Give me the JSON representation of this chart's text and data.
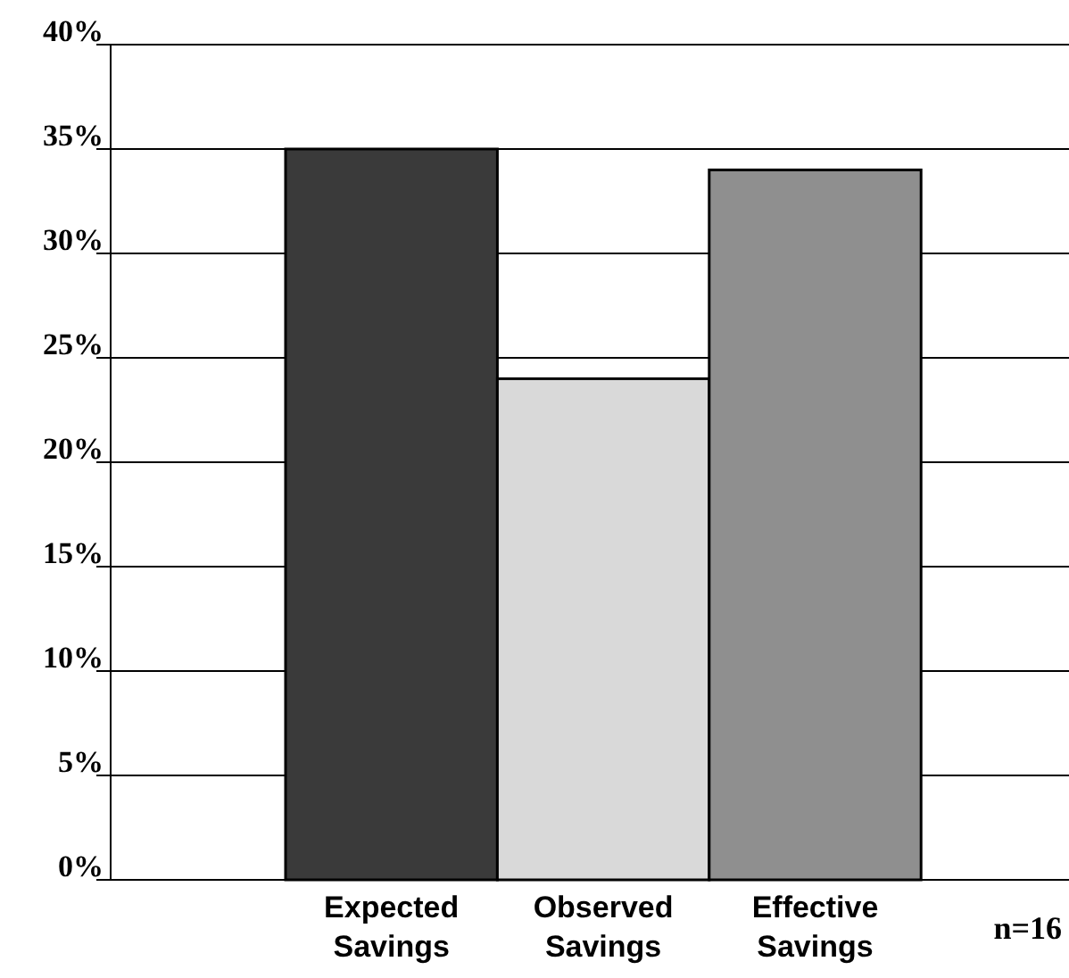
{
  "chart_data": {
    "type": "bar",
    "categories": [
      "Expected Savings",
      "Observed Savings",
      "Effective Savings"
    ],
    "colors": [
      "#3a3a3a",
      "#d9d9d9",
      "#8f8f8f"
    ],
    "values": [
      35,
      24,
      34
    ],
    "ylim": [
      0,
      40
    ],
    "yticks": [
      {
        "value": 0,
        "label": "0%"
      },
      {
        "value": 5,
        "label": "5%"
      },
      {
        "value": 10,
        "label": "10%"
      },
      {
        "value": 15,
        "label": "15%"
      },
      {
        "value": 20,
        "label": "20%"
      },
      {
        "value": 25,
        "label": "25%"
      },
      {
        "value": 30,
        "label": "30%"
      },
      {
        "value": 35,
        "label": "35%"
      },
      {
        "value": 40,
        "label": "40%"
      }
    ],
    "grid": "y",
    "annotations": [
      "n=16"
    ]
  }
}
